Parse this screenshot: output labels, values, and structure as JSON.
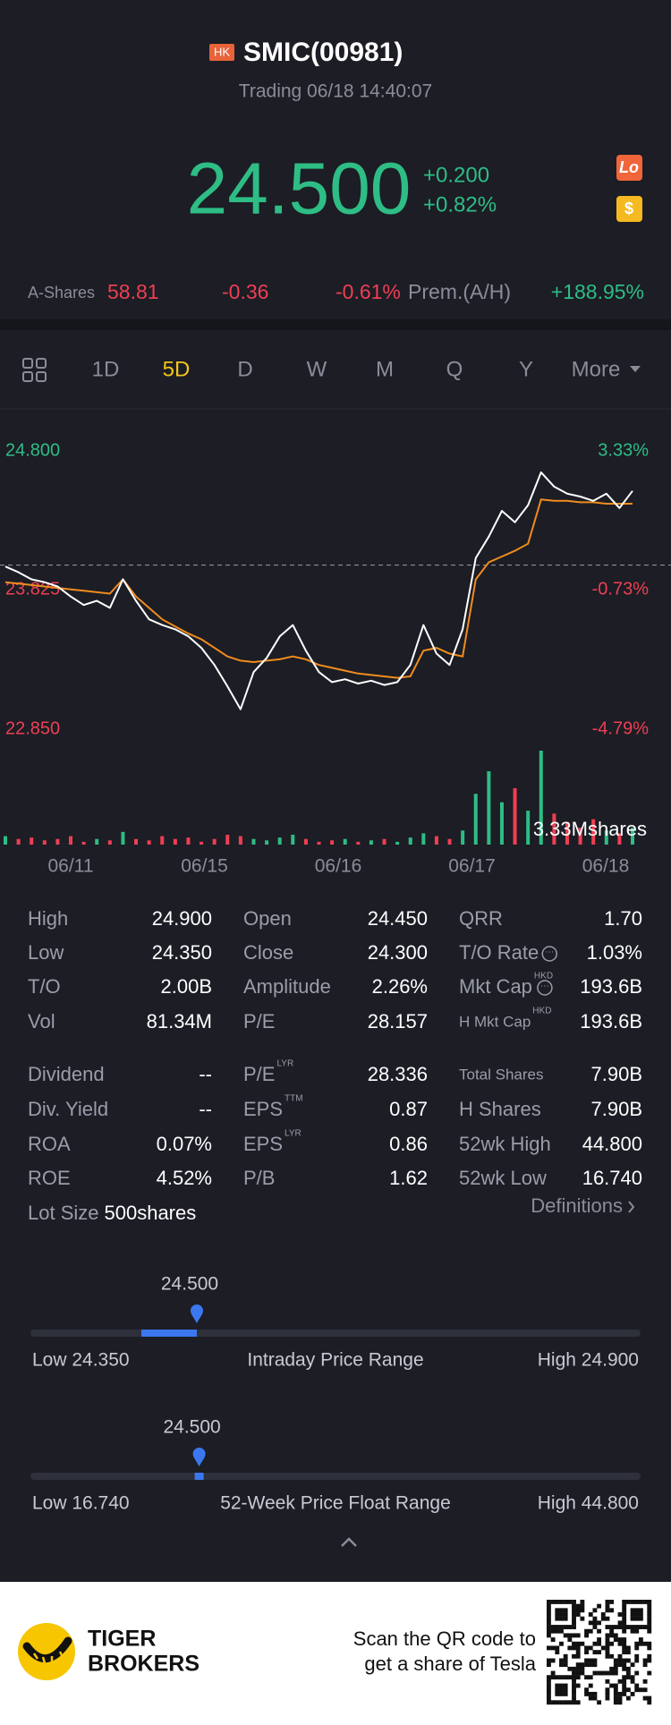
{
  "header": {
    "badge": "HK",
    "title": "SMIC(00981)",
    "subtitle": "Trading 06/18 14:40:07"
  },
  "quote": {
    "price": "24.500",
    "change": "+0.200",
    "change_pct": "+0.82%",
    "icons": [
      "Lo",
      "$"
    ]
  },
  "a_shares": {
    "label": "A-Shares",
    "price": "58.81",
    "change": "-0.36",
    "change_pct": "-0.61%",
    "premium_label": "Prem.(A/H)",
    "premium": "+188.95%"
  },
  "tabs": {
    "items": [
      "1D",
      "5D",
      "D",
      "W",
      "M",
      "Q",
      "Y",
      "More"
    ],
    "active": 1
  },
  "chart": {
    "ylim": [
      22.85,
      24.8
    ],
    "yticks": [
      {
        "value": 24.8,
        "label": "24.800"
      },
      {
        "value": 23.825,
        "label": "23.825"
      },
      {
        "value": 22.85,
        "label": "22.850"
      }
    ],
    "pct_labels": [
      "3.33%",
      "-0.73%",
      "-4.79%"
    ],
    "reference": 24,
    "x_labels": [
      "06/11",
      "06/15",
      "06/16",
      "06/17",
      "06/18"
    ],
    "price": [
      23.99,
      23.95,
      23.9,
      23.88,
      23.85,
      23.78,
      23.72,
      23.75,
      23.7,
      23.9,
      23.75,
      23.62,
      23.58,
      23.55,
      23.5,
      23.42,
      23.3,
      23.15,
      22.99,
      23.25,
      23.35,
      23.5,
      23.58,
      23.4,
      23.25,
      23.18,
      23.2,
      23.17,
      23.19,
      23.16,
      23.18,
      23.3,
      23.58,
      23.38,
      23.3,
      23.55,
      24.05,
      24.2,
      24.38,
      24.3,
      24.42,
      24.65,
      24.55,
      24.5,
      24.48,
      24.45,
      24.5,
      24.4,
      24.52
    ],
    "average": [
      23.88,
      23.87,
      23.86,
      23.85,
      23.84,
      23.83,
      23.82,
      23.81,
      23.8,
      23.9,
      23.78,
      23.7,
      23.62,
      23.57,
      23.52,
      23.48,
      23.42,
      23.36,
      23.33,
      23.32,
      23.33,
      23.34,
      23.36,
      23.34,
      23.3,
      23.28,
      23.26,
      23.24,
      23.23,
      23.22,
      23.21,
      23.22,
      23.4,
      23.42,
      23.38,
      23.36,
      23.9,
      24.02,
      24.06,
      24.1,
      24.15,
      24.46,
      24.45,
      24.45,
      24.44,
      24.44,
      24.43,
      24.43,
      24.43
    ],
    "volume": [
      0.3,
      0.2,
      0.25,
      0.15,
      0.2,
      0.3,
      0.1,
      0.2,
      0.15,
      0.45,
      0.2,
      0.15,
      0.3,
      0.2,
      0.25,
      0.1,
      0.2,
      0.35,
      0.3,
      0.2,
      0.15,
      0.25,
      0.35,
      0.2,
      0.1,
      0.15,
      0.2,
      0.1,
      0.15,
      0.2,
      0.1,
      0.25,
      0.4,
      0.3,
      0.2,
      0.5,
      1.8,
      2.6,
      1.5,
      2.0,
      1.2,
      3.33,
      1.1,
      0.8,
      0.6,
      0.9,
      0.5,
      0.4,
      0.6
    ],
    "volume_label": "3.33Mshares"
  },
  "stats": [
    [
      {
        "label": "High",
        "value": "24.900"
      },
      {
        "label": "Open",
        "value": "24.450"
      },
      {
        "label": "QRR",
        "value": "1.70"
      }
    ],
    [
      {
        "label": "Low",
        "value": "24.350"
      },
      {
        "label": "Close",
        "value": "24.300"
      },
      {
        "label": "T/O Rate",
        "value": "1.03%"
      }
    ],
    [
      {
        "label": "T/O",
        "value": "2.00B"
      },
      {
        "label": "Amplitude",
        "value": "2.26%"
      },
      {
        "label": "Mkt Cap",
        "sup": "HKD",
        "value": "193.6B"
      }
    ],
    [
      {
        "label": "Vol",
        "value": "81.34M"
      },
      {
        "label": "P/E",
        "value": "28.157"
      },
      {
        "label": "H Mkt Cap",
        "sup": "HKD",
        "value": "193.6B"
      }
    ],
    [
      {
        "label": "Dividend",
        "value": "--"
      },
      {
        "label": "P/E",
        "sup": "LYR",
        "value": "28.336"
      },
      {
        "label": "Total Shares",
        "value": "7.90B"
      }
    ],
    [
      {
        "label": "Div. Yield",
        "value": "--"
      },
      {
        "label": "EPS",
        "sup": "TTM",
        "value": "0.87"
      },
      {
        "label": "H Shares",
        "value": "7.90B"
      }
    ],
    [
      {
        "label": "ROA",
        "value": "0.07%"
      },
      {
        "label": "EPS",
        "sup": "LYR",
        "value": "0.86"
      },
      {
        "label": "52wk High",
        "value": "44.800"
      }
    ],
    [
      {
        "label": "ROE",
        "value": "4.52%"
      },
      {
        "label": "P/B",
        "value": "1.62"
      },
      {
        "label": "52wk Low",
        "value": "16.740"
      }
    ]
  ],
  "lot_size": {
    "label": "Lot Size",
    "value": "500shares"
  },
  "definitions": "Definitions",
  "ranges": [
    {
      "value": 24.5,
      "value_label": "24.500",
      "from": 24.45,
      "low": 24.35,
      "high": 24.9,
      "low_label": "Low 24.350",
      "title": "Intraday Price Range",
      "high_label": "High 24.900"
    },
    {
      "value": 24.5,
      "value_label": "24.500",
      "from": 24.45,
      "low": 16.74,
      "high": 44.8,
      "low_label": "Low 16.740",
      "title": "52-Week Price Float Range",
      "high_label": "High 44.800"
    }
  ],
  "footer": {
    "brand": [
      "TIGER",
      "BROKERS"
    ],
    "tagline": [
      "Scan the QR code to",
      "get a share of Tesla"
    ]
  }
}
